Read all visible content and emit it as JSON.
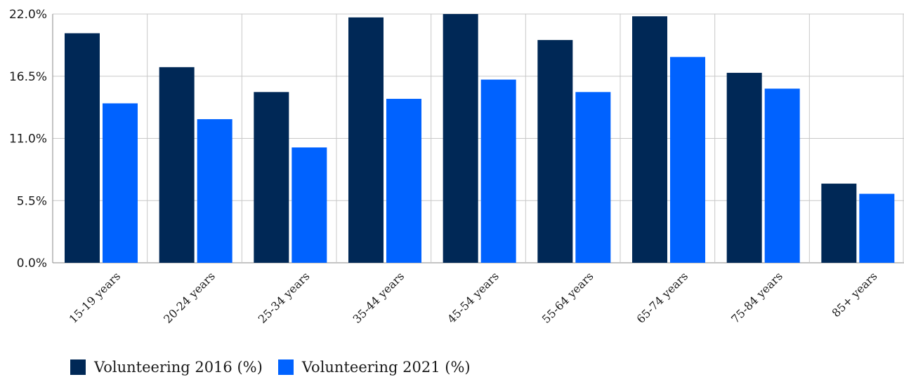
{
  "chart_data": {
    "type": "bar",
    "categories": [
      "15-19 years",
      "20-24 years",
      "25-34 years",
      "35-44 years",
      "45-54 years",
      "55-64 years",
      "65-74 years",
      "75-84 years",
      "85+ years"
    ],
    "series": [
      {
        "name": "Volunteering 2016 (%)",
        "color": "#002856",
        "values": [
          20.3,
          17.3,
          15.1,
          21.7,
          22.0,
          19.7,
          21.8,
          16.8,
          7.0
        ]
      },
      {
        "name": "Volunteering 2021 (%)",
        "color": "#0062ff",
        "values": [
          14.1,
          12.7,
          10.2,
          14.5,
          16.2,
          15.1,
          18.2,
          15.4,
          6.1
        ]
      }
    ],
    "y_ticks": [
      "0.0%",
      "5.5%",
      "11.0%",
      "16.5%",
      "22.0%"
    ],
    "ylim": [
      0,
      22
    ],
    "grid": true,
    "legend_position": "bottom-left"
  }
}
